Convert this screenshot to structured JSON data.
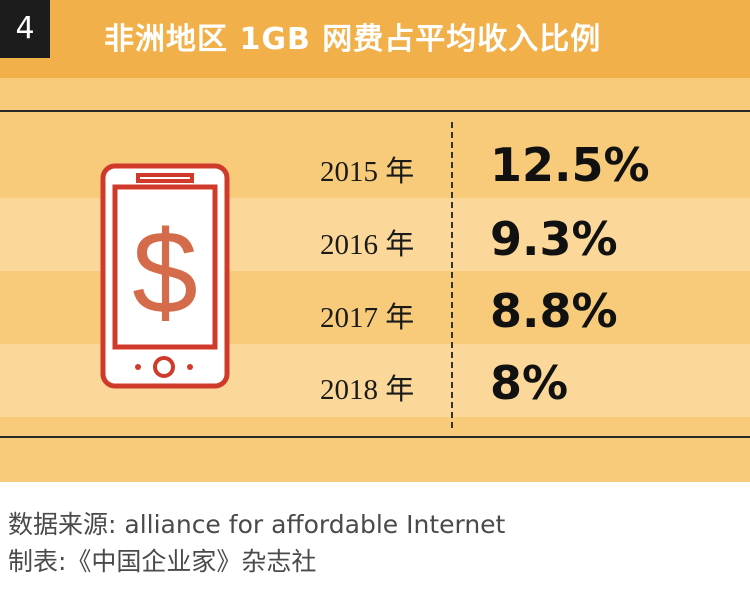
{
  "header": {
    "index": "4",
    "title": "非洲地区 1GB 网费占平均收入比例"
  },
  "chart_data": {
    "type": "table",
    "title": "非洲地区 1GB 网费占平均收入比例",
    "rows": [
      {
        "year": "2015 年",
        "value": "12.5%"
      },
      {
        "year": "2016 年",
        "value": "9.3%"
      },
      {
        "year": "2017 年",
        "value": "8.8%"
      },
      {
        "year": "2018 年",
        "value": "8%"
      }
    ]
  },
  "illustration": {
    "icon": "smartphone-dollar-icon",
    "glyph": "$"
  },
  "footer": {
    "source": "数据来源: alliance for affordable Internet",
    "credit": "制表:《中国企业家》杂志社"
  },
  "colors": {
    "banner": "#f2b04a",
    "panel": "#f8cb7b",
    "stripe": "#fbd899",
    "phone": "#d03a2a",
    "dollar": "#d46b4a"
  }
}
